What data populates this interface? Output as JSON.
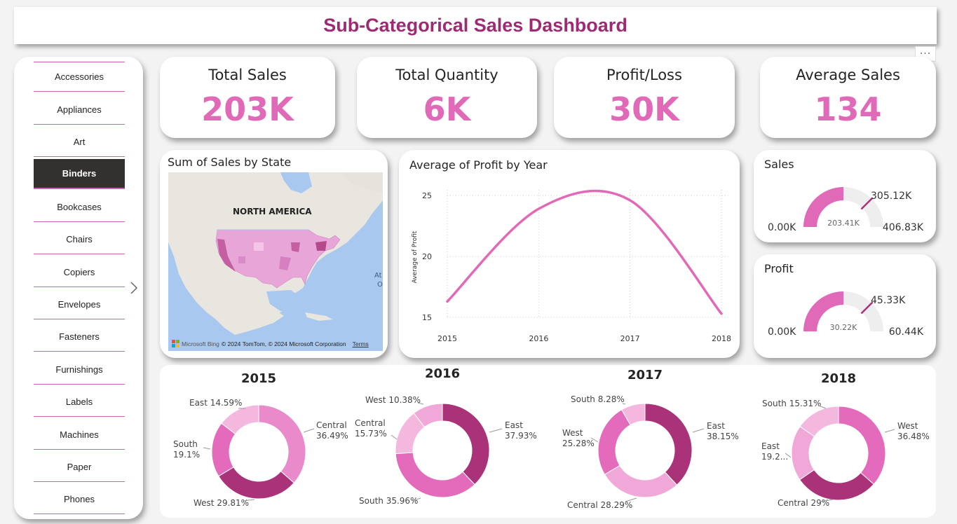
{
  "header": {
    "title": "Sub-Categorical Sales Dashboard",
    "more_label": "···"
  },
  "slicer": {
    "items": [
      "Accessories",
      "Appliances",
      "Art",
      "Binders",
      "Bookcases",
      "Chairs",
      "Copiers",
      "Envelopes",
      "Fasteners",
      "Furnishings",
      "Labels",
      "Machines",
      "Paper",
      "Phones"
    ],
    "selected": "Binders"
  },
  "kpis": [
    {
      "label": "Total Sales",
      "value": "203K"
    },
    {
      "label": "Total Quantity",
      "value": "6K"
    },
    {
      "label": "Profit/Loss",
      "value": "30K"
    },
    {
      "label": "Average Sales",
      "value": "134"
    }
  ],
  "map": {
    "title": "Sum of Sales by State",
    "region_label": "NORTH AMERICA",
    "ocean_label_1": "At",
    "ocean_label_2": "O",
    "brand": "Microsoft Bing",
    "credit": "© 2024 TomTom, © 2024 Microsoft Corporation",
    "terms": "Terms"
  },
  "line_chart": {
    "title": "Average of Profit by Year",
    "ylabel": "Average of Profit"
  },
  "gauges": [
    {
      "title": "Sales",
      "min_label": "0.00K",
      "max_label": "406.83K",
      "target_label": "305.12K",
      "value_label": "203.41K",
      "value": 203.41,
      "max": 406.83,
      "target": 305.12
    },
    {
      "title": "Profit",
      "min_label": "0.00K",
      "max_label": "60.44K",
      "target_label": "45.33K",
      "value_label": "30.22K",
      "value": 30.22,
      "max": 60.44,
      "target": 45.33
    }
  ],
  "colors": {
    "accent": "#e069b8",
    "title": "#9c2b73",
    "dark": "#a93279",
    "mid": "#e46bbb",
    "light": "#f0a8d8",
    "lighter": "#f4b8df"
  },
  "chart_data": [
    {
      "type": "line",
      "title": "Average of Profit by Year",
      "xlabel": "",
      "ylabel": "Average of Profit",
      "x": [
        "2015",
        "2016",
        "2017",
        "2018"
      ],
      "series": [
        {
          "values": [
            16.3,
            23.9,
            24.6,
            15.3
          ]
        }
      ],
      "ylim": [
        15,
        25
      ],
      "yticks": [
        15,
        20,
        25
      ],
      "grid": true
    },
    {
      "type": "pie",
      "title": "2015",
      "categories": [
        "Central",
        "West",
        "South",
        "East"
      ],
      "values": [
        36.49,
        29.81,
        19.1,
        14.59
      ],
      "labels": [
        "Central\n36.49%",
        "West 29.81%",
        "South\n19.1%",
        "East 14.59%"
      ]
    },
    {
      "type": "pie",
      "title": "2016",
      "categories": [
        "East",
        "South",
        "Central",
        "West"
      ],
      "values": [
        37.93,
        35.96,
        15.73,
        10.38
      ],
      "labels": [
        "East\n37.93%",
        "South 35.96%",
        "Central\n15.73%",
        "West 10.38%"
      ]
    },
    {
      "type": "pie",
      "title": "2017",
      "categories": [
        "East",
        "Central",
        "West",
        "South"
      ],
      "values": [
        38.15,
        28.29,
        25.28,
        8.28
      ],
      "labels": [
        "East\n38.15%",
        "Central 28.29%",
        "West\n25.28%",
        "South 8.28%"
      ]
    },
    {
      "type": "pie",
      "title": "2018",
      "categories": [
        "West",
        "Central",
        "East",
        "South"
      ],
      "values": [
        36.48,
        29,
        19.2,
        15.31
      ],
      "labels": [
        "West\n36.48%",
        "Central 29%",
        "East\n19.2...",
        "South 15.31%"
      ]
    }
  ]
}
